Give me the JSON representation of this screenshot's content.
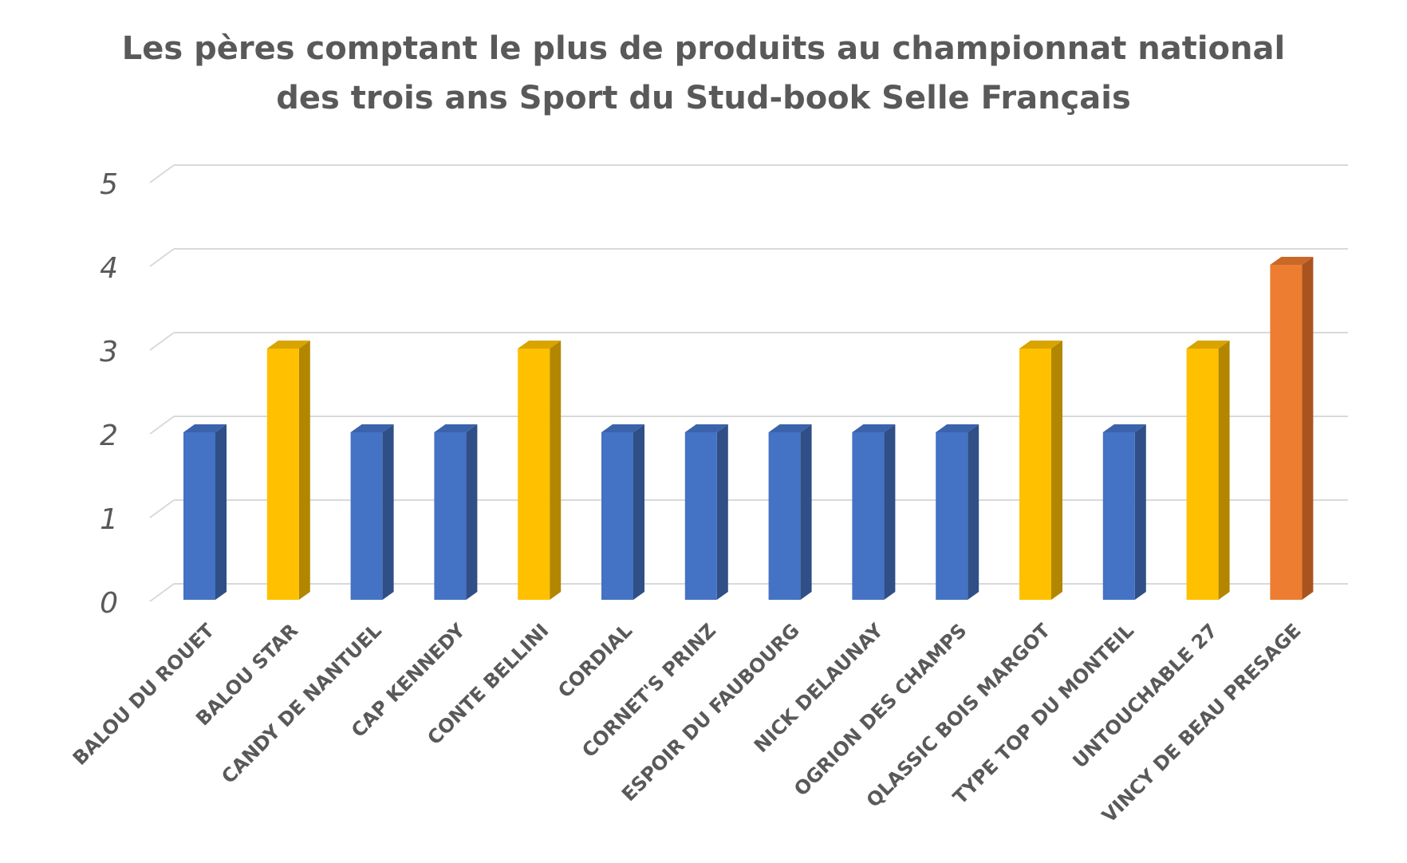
{
  "chart_data": {
    "type": "bar",
    "title_lines": [
      "Les pères comptant le plus de produits au championnat national",
      "des trois ans Sport du Stud-book Selle Français"
    ],
    "xlabel": "",
    "ylabel": "",
    "ylim": [
      0,
      5
    ],
    "yticks": [
      "0",
      "1",
      "2",
      "3",
      "4",
      "5"
    ],
    "grid": true,
    "legend": "none",
    "categories": [
      "BALOU DU ROUET",
      "BALOU STAR",
      "CANDY DE NANTUEL",
      "CAP KENNEDY",
      "CONTE BELLINI",
      "CORDIAL",
      "CORNET'S PRINZ",
      "ESPOIR DU FAUBOURG",
      "NICK DELAUNAY",
      "OGRION DES CHAMPS",
      "QLASSIC BOIS MARGOT",
      "TYPE TOP DU MONTEIL",
      "UNTOUCHABLE 27",
      "VINCY DE BEAU PRESAGE"
    ],
    "values": [
      2,
      3,
      2,
      2,
      3,
      2,
      2,
      2,
      2,
      2,
      3,
      2,
      3,
      4
    ],
    "colors": {
      "2": {
        "front": "#4472C4",
        "side": "#2F4F86",
        "top": "#3A63AC"
      },
      "3": {
        "front": "#FFC000",
        "side": "#B38600",
        "top": "#D9A300"
      },
      "4": {
        "front": "#ED7D31",
        "side": "#A9541E",
        "top": "#C96828"
      }
    },
    "text_color": "#595959",
    "grid_color": "#D9D9D9"
  }
}
